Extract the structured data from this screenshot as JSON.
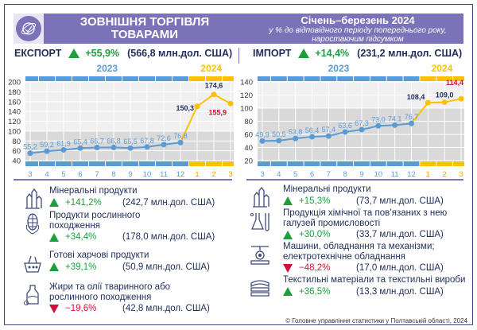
{
  "header": {
    "title_line1": "ЗОВНІШНЯ ТОРГІВЛЯ",
    "title_line2": "ТОВАРАМИ",
    "period": "Січень–березень 2024",
    "subtitle_line1": "у % до відповідного періоду попереднього року,",
    "subtitle_line2": "наростаючим підсумком"
  },
  "export": {
    "label": "ЕКСПОРТ",
    "change": "+55,9%",
    "amount": "(566,8 млн.дол. США)",
    "trend": "up"
  },
  "import": {
    "label": "ІМПОРТ",
    "change": "+14,4%",
    "amount": "(231,2 млн.дол. США)",
    "trend": "up"
  },
  "colors": {
    "header": "#7b72b8",
    "y2023": "#5b9bd5",
    "y2024": "#ffc000",
    "up": "#1f9e3c",
    "down": "#d0103a"
  },
  "chart_data": [
    {
      "type": "line",
      "name": "export",
      "years": [
        "2023",
        "2024"
      ],
      "categories": [
        "3",
        "4",
        "5",
        "6",
        "7",
        "8",
        "9",
        "10",
        "11",
        "12",
        "1",
        "2",
        "3"
      ],
      "values": [
        55.2,
        59.2,
        61.9,
        65.4,
        66.7,
        66.8,
        65.5,
        67.8,
        72.6,
        76.8,
        150.3,
        174.6,
        155.9
      ],
      "labels": [
        "55,2",
        "59,2",
        "61,9",
        "65,4",
        "66,7",
        "66,8",
        "65,5",
        "67,8",
        "72,6",
        "76,8",
        "150,3",
        "174,6",
        "155,9"
      ],
      "ylim": [
        40,
        200
      ],
      "yticks": [
        "40",
        "60",
        "80",
        "100",
        "120",
        "140",
        "160",
        "180",
        "200"
      ],
      "grid": true
    },
    {
      "type": "line",
      "name": "import",
      "years": [
        "2023",
        "2024"
      ],
      "categories": [
        "3",
        "4",
        "5",
        "6",
        "7",
        "8",
        "9",
        "10",
        "11",
        "12",
        "1",
        "2",
        "3"
      ],
      "values": [
        49.9,
        50.5,
        53.8,
        56.4,
        57.4,
        63.6,
        67.3,
        73.0,
        74.1,
        76.7,
        108.4,
        109.0,
        114.4
      ],
      "labels": [
        "49,9",
        "50,5",
        "53,8",
        "56,4",
        "57,4",
        "63,6",
        "67,3",
        "73,0",
        "74,1",
        "76,7",
        "108,4",
        "109,0",
        "114,4"
      ],
      "ylim": [
        20,
        140
      ],
      "yticks": [
        "20",
        "40",
        "60",
        "80",
        "100",
        "120",
        "140"
      ],
      "grid": true
    }
  ],
  "export_items": [
    {
      "name": "Мінеральні продукти",
      "change": "+141,2%",
      "amount": "(242,7 млн.дол. США)",
      "trend": "up",
      "icon": "crystals-icon"
    },
    {
      "name": "Продукти рослинного походження",
      "change": "+34,4%",
      "amount": "(178,0 млн.дол. США)",
      "trend": "up",
      "icon": "corn-icon"
    },
    {
      "name": "Готові харчові продукти",
      "change": "+39,1%",
      "amount": "(50,9 млн.дол. США)",
      "trend": "up",
      "icon": "food-basket-icon"
    },
    {
      "name": "Жири та олії тваринного або рослинного походження",
      "change": "−19,6%",
      "amount": "(42,8 млн.дол. США)",
      "trend": "down",
      "icon": "oil-bottle-icon"
    }
  ],
  "import_items": [
    {
      "name": "Мінеральні продукти",
      "change": "+15,3%",
      "amount": "(73,7 млн.дол. США)",
      "trend": "up",
      "icon": "crystals-icon"
    },
    {
      "name": "Продукція хімічної та пов’язаних з нею галузей промисловості",
      "change": "+30,0%",
      "amount": "(33,7 млн.дол. США)",
      "trend": "up",
      "icon": "chemistry-flask-icon"
    },
    {
      "name": "Машини, обладнання та механізми; електротехнічне обладнання",
      "change": "−48,2%",
      "amount": "(17,0 млн.дол. США)",
      "trend": "down",
      "icon": "machine-icon"
    },
    {
      "name": "Текстильні матеріали та текстильні вироби",
      "change": "+36,5%",
      "amount": "(13,3 млн.дол. США)",
      "trend": "up",
      "icon": "textile-icon"
    }
  ],
  "footer": "© Головне управління статистики у Полтавській області, 2024"
}
